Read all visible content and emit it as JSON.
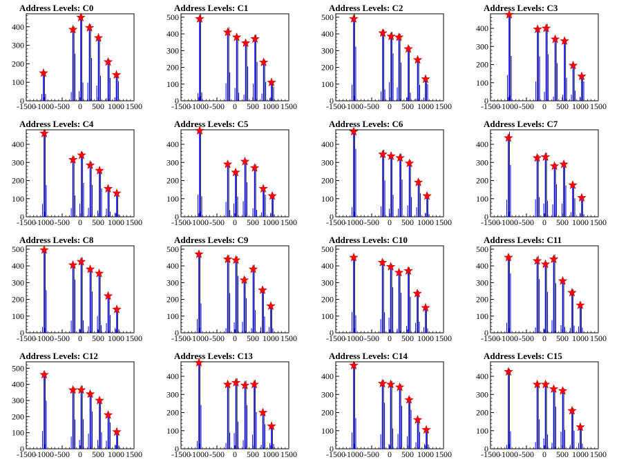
{
  "chart_data": [
    {
      "type": "bar",
      "title": "Address Levels: C0",
      "xlim": [
        -1500,
        1500
      ],
      "ylim": [
        0,
        470
      ],
      "yticks": [
        0,
        100,
        200,
        300,
        400
      ],
      "xtick_labels": [
        "-1500",
        "-1000",
        "-500",
        "0",
        "500",
        "1000",
        "1500"
      ],
      "peaks": [
        {
          "x": -1020,
          "y": 150
        },
        {
          "x": -200,
          "y": 385
        },
        {
          "x": 20,
          "y": 450
        },
        {
          "x": 260,
          "y": 395
        },
        {
          "x": 510,
          "y": 340
        },
        {
          "x": 780,
          "y": 210
        },
        {
          "x": 1010,
          "y": 140
        }
      ]
    },
    {
      "type": "bar",
      "title": "Address Levels: C1",
      "xlim": [
        -1500,
        1500
      ],
      "ylim": [
        0,
        520
      ],
      "yticks": [
        0,
        100,
        200,
        300,
        400,
        500
      ],
      "xtick_labels": [
        "-1500",
        "-1000",
        "-500",
        "0",
        "500",
        "1000",
        "1500"
      ],
      "peaks": [
        {
          "x": -980,
          "y": 490
        },
        {
          "x": -200,
          "y": 410
        },
        {
          "x": 50,
          "y": 380
        },
        {
          "x": 300,
          "y": 345
        },
        {
          "x": 560,
          "y": 370
        },
        {
          "x": 800,
          "y": 230
        },
        {
          "x": 1020,
          "y": 110
        }
      ]
    },
    {
      "type": "bar",
      "title": "Address Levels: C2",
      "xlim": [
        -1500,
        1500
      ],
      "ylim": [
        0,
        520
      ],
      "yticks": [
        0,
        100,
        200,
        300,
        400,
        500
      ],
      "xtick_labels": [
        "-1500",
        "-1000",
        "-500",
        "0",
        "500",
        "1000",
        "1500"
      ],
      "peaks": [
        {
          "x": -1000,
          "y": 490
        },
        {
          "x": -190,
          "y": 405
        },
        {
          "x": 40,
          "y": 385
        },
        {
          "x": 260,
          "y": 380
        },
        {
          "x": 520,
          "y": 310
        },
        {
          "x": 780,
          "y": 245
        },
        {
          "x": 1000,
          "y": 130
        }
      ]
    },
    {
      "type": "bar",
      "title": "Address Levels: C3",
      "xlim": [
        -1500,
        1500
      ],
      "ylim": [
        0,
        480
      ],
      "yticks": [
        0,
        100,
        200,
        300,
        400
      ],
      "xtick_labels": [
        "-1500",
        "-1000",
        "-500",
        "0",
        "500",
        "1000",
        "1500"
      ],
      "peaks": [
        {
          "x": -980,
          "y": 475
        },
        {
          "x": -190,
          "y": 395
        },
        {
          "x": 50,
          "y": 400
        },
        {
          "x": 300,
          "y": 340
        },
        {
          "x": 560,
          "y": 330
        },
        {
          "x": 800,
          "y": 195
        },
        {
          "x": 1040,
          "y": 135
        }
      ]
    },
    {
      "type": "bar",
      "title": "Address Levels: C4",
      "xlim": [
        -1500,
        1500
      ],
      "ylim": [
        0,
        480
      ],
      "yticks": [
        0,
        100,
        200,
        300,
        400
      ],
      "xtick_labels": [
        "-1500",
        "-1000",
        "-500",
        "0",
        "500",
        "1000",
        "1500"
      ],
      "peaks": [
        {
          "x": -1000,
          "y": 460
        },
        {
          "x": -200,
          "y": 315
        },
        {
          "x": 40,
          "y": 340
        },
        {
          "x": 280,
          "y": 285
        },
        {
          "x": 540,
          "y": 255
        },
        {
          "x": 780,
          "y": 155
        },
        {
          "x": 1020,
          "y": 130
        }
      ]
    },
    {
      "type": "bar",
      "title": "Address Levels: C5",
      "xlim": [
        -1500,
        1500
      ],
      "ylim": [
        0,
        480
      ],
      "yticks": [
        0,
        100,
        200,
        300,
        400
      ],
      "xtick_labels": [
        "-1500",
        "-1000",
        "-500",
        "0",
        "500",
        "1000",
        "1500"
      ],
      "peaks": [
        {
          "x": -980,
          "y": 475
        },
        {
          "x": -200,
          "y": 290
        },
        {
          "x": 20,
          "y": 245
        },
        {
          "x": 280,
          "y": 305
        },
        {
          "x": 550,
          "y": 270
        },
        {
          "x": 790,
          "y": 155
        },
        {
          "x": 1040,
          "y": 115
        }
      ]
    },
    {
      "type": "bar",
      "title": "Address Levels: C6",
      "xlim": [
        -1500,
        1500
      ],
      "ylim": [
        0,
        480
      ],
      "yticks": [
        0,
        100,
        200,
        300,
        400
      ],
      "xtick_labels": [
        "-1500",
        "-1000",
        "-500",
        "0",
        "500",
        "1000",
        "1500"
      ],
      "peaks": [
        {
          "x": -1000,
          "y": 470
        },
        {
          "x": -190,
          "y": 345
        },
        {
          "x": 40,
          "y": 335
        },
        {
          "x": 290,
          "y": 325
        },
        {
          "x": 550,
          "y": 295
        },
        {
          "x": 800,
          "y": 190
        },
        {
          "x": 1040,
          "y": 115
        }
      ]
    },
    {
      "type": "bar",
      "title": "Address Levels: C7",
      "xlim": [
        -1500,
        1500
      ],
      "ylim": [
        0,
        480
      ],
      "yticks": [
        0,
        100,
        200,
        300,
        400
      ],
      "xtick_labels": [
        "-1500",
        "-1000",
        "-500",
        "0",
        "500",
        "1000",
        "1500"
      ],
      "peaks": [
        {
          "x": -1000,
          "y": 435
        },
        {
          "x": -200,
          "y": 325
        },
        {
          "x": 30,
          "y": 330
        },
        {
          "x": 280,
          "y": 280
        },
        {
          "x": 540,
          "y": 290
        },
        {
          "x": 790,
          "y": 175
        },
        {
          "x": 1040,
          "y": 105
        }
      ]
    },
    {
      "type": "bar",
      "title": "Address Levels: C8",
      "xlim": [
        -1500,
        1500
      ],
      "ylim": [
        0,
        520
      ],
      "yticks": [
        0,
        100,
        200,
        300,
        400,
        500
      ],
      "xtick_labels": [
        "-1500",
        "-1000",
        "-500",
        "0",
        "500",
        "1000",
        "1500"
      ],
      "peaks": [
        {
          "x": -1000,
          "y": 495
        },
        {
          "x": -200,
          "y": 405
        },
        {
          "x": 30,
          "y": 425
        },
        {
          "x": 280,
          "y": 380
        },
        {
          "x": 530,
          "y": 355
        },
        {
          "x": 780,
          "y": 220
        },
        {
          "x": 1020,
          "y": 140
        }
      ]
    },
    {
      "type": "bar",
      "title": "Address Levels: C9",
      "xlim": [
        -1500,
        1500
      ],
      "ylim": [
        0,
        520
      ],
      "yticks": [
        0,
        100,
        200,
        300,
        400,
        500
      ],
      "xtick_labels": [
        "-1500",
        "-1000",
        "-500",
        "0",
        "500",
        "1000",
        "1500"
      ],
      "peaks": [
        {
          "x": -1000,
          "y": 470
        },
        {
          "x": -200,
          "y": 440
        },
        {
          "x": 30,
          "y": 435
        },
        {
          "x": 260,
          "y": 315
        },
        {
          "x": 510,
          "y": 380
        },
        {
          "x": 770,
          "y": 255
        },
        {
          "x": 1000,
          "y": 160
        }
      ]
    },
    {
      "type": "bar",
      "title": "Address Levels: C10",
      "xlim": [
        -1500,
        1500
      ],
      "ylim": [
        0,
        520
      ],
      "yticks": [
        0,
        100,
        200,
        300,
        400,
        500
      ],
      "xtick_labels": [
        "-1500",
        "-1000",
        "-500",
        "0",
        "500",
        "1000",
        "1500"
      ],
      "peaks": [
        {
          "x": -1000,
          "y": 450
        },
        {
          "x": -200,
          "y": 420
        },
        {
          "x": 30,
          "y": 395
        },
        {
          "x": 260,
          "y": 360
        },
        {
          "x": 520,
          "y": 370
        },
        {
          "x": 770,
          "y": 235
        },
        {
          "x": 1000,
          "y": 150
        }
      ]
    },
    {
      "type": "bar",
      "title": "Address Levels: C11",
      "xlim": [
        -1500,
        1500
      ],
      "ylim": [
        0,
        520
      ],
      "yticks": [
        0,
        100,
        200,
        300,
        400,
        500
      ],
      "xtick_labels": [
        "-1500",
        "-1000",
        "-500",
        "0",
        "500",
        "1000",
        "1500"
      ],
      "peaks": [
        {
          "x": -1000,
          "y": 450
        },
        {
          "x": -200,
          "y": 430
        },
        {
          "x": 30,
          "y": 410
        },
        {
          "x": 260,
          "y": 440
        },
        {
          "x": 510,
          "y": 310
        },
        {
          "x": 770,
          "y": 240
        },
        {
          "x": 1000,
          "y": 165
        }
      ]
    },
    {
      "type": "bar",
      "title": "Address Levels: C12",
      "xlim": [
        -1500,
        1500
      ],
      "ylim": [
        0,
        540
      ],
      "yticks": [
        0,
        100,
        200,
        300,
        400,
        500
      ],
      "xtick_labels": [
        "-1500",
        "-1000",
        "-500",
        "0",
        "500",
        "1000",
        "1500"
      ],
      "peaks": [
        {
          "x": -1000,
          "y": 460
        },
        {
          "x": -200,
          "y": 365
        },
        {
          "x": 30,
          "y": 365
        },
        {
          "x": 280,
          "y": 340
        },
        {
          "x": 540,
          "y": 300
        },
        {
          "x": 780,
          "y": 210
        },
        {
          "x": 1020,
          "y": 105
        }
      ]
    },
    {
      "type": "bar",
      "title": "Address Levels: C13",
      "xlim": [
        -1500,
        1500
      ],
      "ylim": [
        0,
        480
      ],
      "yticks": [
        0,
        100,
        200,
        300,
        400
      ],
      "xtick_labels": [
        "-1500",
        "-1000",
        "-500",
        "0",
        "500",
        "1000",
        "1500"
      ],
      "peaks": [
        {
          "x": -1000,
          "y": 475
        },
        {
          "x": -200,
          "y": 355
        },
        {
          "x": 30,
          "y": 365
        },
        {
          "x": 280,
          "y": 350
        },
        {
          "x": 540,
          "y": 355
        },
        {
          "x": 780,
          "y": 200
        },
        {
          "x": 1020,
          "y": 125
        }
      ]
    },
    {
      "type": "bar",
      "title": "Address Levels: C14",
      "xlim": [
        -1500,
        1500
      ],
      "ylim": [
        0,
        480
      ],
      "yticks": [
        0,
        100,
        200,
        300,
        400
      ],
      "xtick_labels": [
        "-1500",
        "-1000",
        "-500",
        "0",
        "500",
        "1000",
        "1500"
      ],
      "peaks": [
        {
          "x": -1000,
          "y": 460
        },
        {
          "x": -200,
          "y": 360
        },
        {
          "x": 30,
          "y": 355
        },
        {
          "x": 280,
          "y": 340
        },
        {
          "x": 540,
          "y": 270
        },
        {
          "x": 780,
          "y": 160
        },
        {
          "x": 1020,
          "y": 105
        }
      ]
    },
    {
      "type": "bar",
      "title": "Address Levels: C15",
      "xlim": [
        -1500,
        1500
      ],
      "ylim": [
        0,
        480
      ],
      "yticks": [
        0,
        100,
        200,
        300,
        400
      ],
      "xtick_labels": [
        "-1500",
        "-1000",
        "-500",
        "0",
        "500",
        "1000",
        "1500"
      ],
      "peaks": [
        {
          "x": -1000,
          "y": 425
        },
        {
          "x": -200,
          "y": 355
        },
        {
          "x": 30,
          "y": 355
        },
        {
          "x": 260,
          "y": 330
        },
        {
          "x": 510,
          "y": 320
        },
        {
          "x": 770,
          "y": 210
        },
        {
          "x": 1000,
          "y": 120
        }
      ]
    }
  ],
  "colors": {
    "bar": "#0000ff",
    "marker": "#ff0000",
    "marker_edge": "#cc0000",
    "axis": "#000000",
    "background": "#ffffff"
  }
}
